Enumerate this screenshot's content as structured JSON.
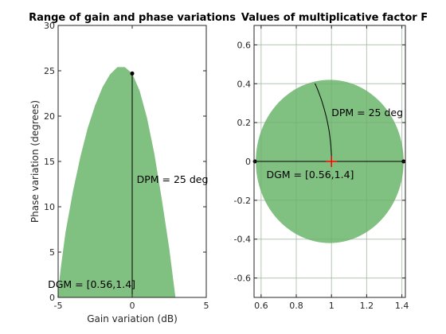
{
  "chart_data": [
    {
      "type": "area",
      "title": "Range of gain and phase variations",
      "xlabel": "Gain variation (dB)",
      "ylabel": "Phase variation (degrees)",
      "xlim": [
        -5,
        5
      ],
      "ylim": [
        0,
        30
      ],
      "xticks": [
        -5,
        0,
        5
      ],
      "yticks": [
        0,
        5,
        10,
        15,
        20,
        25,
        30
      ],
      "grid": false,
      "series": [
        {
          "x": [
            -5.05,
            -4.8,
            -4.5,
            -4,
            -3.5,
            -3,
            -2.5,
            -2,
            -1.5,
            -1,
            -0.5,
            0,
            0.5,
            1,
            1.5,
            2,
            2.5,
            2.92
          ],
          "y": [
            0,
            3.5,
            7.2,
            11.7,
            15.5,
            18.7,
            21.2,
            23.2,
            24.6,
            25.4,
            25.4,
            24.7,
            22.8,
            19.8,
            15.8,
            10.8,
            5.4,
            0
          ]
        }
      ],
      "fill_color": "#80c080",
      "marker": {
        "x": 0,
        "y": 24.7
      },
      "annotations": [
        {
          "text": "DPM = 25 deg",
          "x": 0.3,
          "y": 13
        },
        {
          "text": "DGM = [0.56,1.4]",
          "x": -5.05,
          "y": 1.4
        }
      ]
    },
    {
      "type": "scatter",
      "title": "Values of multiplicative factor F",
      "xlim": [
        0.56,
        1.42
      ],
      "ylim": [
        -0.7,
        0.7
      ],
      "xticks": [
        0.6,
        0.8,
        1,
        1.2,
        1.4
      ],
      "yticks": [
        -0.6,
        -0.4,
        -0.2,
        0,
        0.2,
        0.4,
        0.6
      ],
      "grid": true,
      "disk": {
        "cx": 0.99,
        "cy": 0,
        "r": 0.42
      },
      "fill_color": "#80c080",
      "points": [
        {
          "x": 0.565,
          "y": 0
        },
        {
          "x": 1.41,
          "y": 0
        }
      ],
      "center_marker": {
        "x": 1,
        "y": 0,
        "color": "#ff0000"
      },
      "annotations": [
        {
          "text": "DPM = 25 deg",
          "x": 1,
          "y": 0.25
        },
        {
          "text": "DGM = [0.56,1.4]",
          "x": 0.63,
          "y": -0.07
        }
      ]
    }
  ]
}
